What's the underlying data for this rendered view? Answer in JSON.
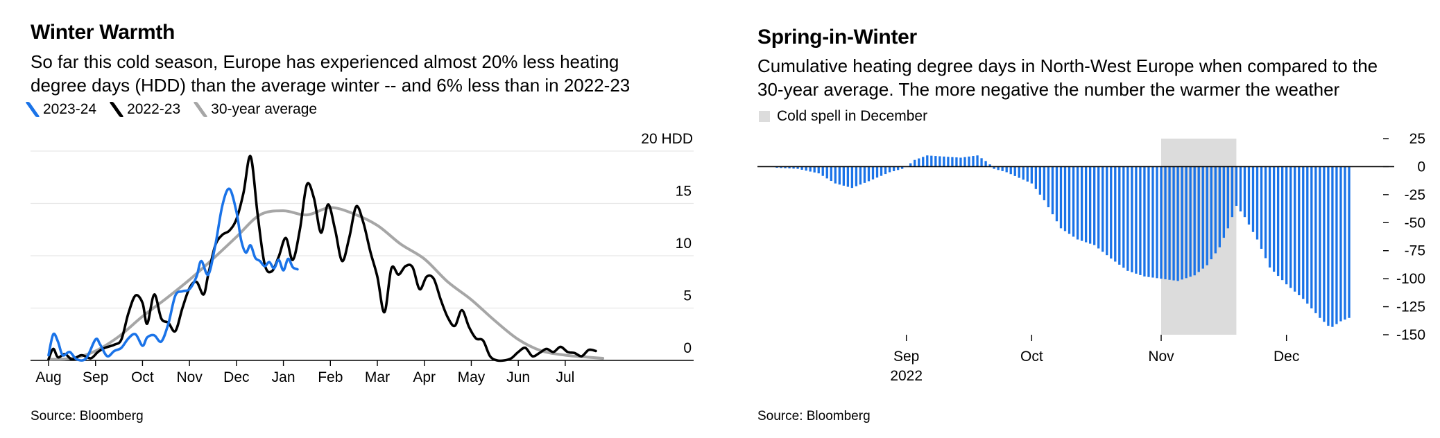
{
  "left": {
    "title": "Winter Warmth",
    "subtitle_1": "So far this cold season, Europe has experienced almost 20% less heating",
    "subtitle_2": "degree days (HDD) than the average winter -- and 6% less than in 2022-23",
    "source": "Source: Bloomberg",
    "colors": {
      "s2324": "#1a73e8",
      "s2223": "#000000",
      "avg": "#a6a6a6"
    },
    "chart_data": {
      "type": "line",
      "x_ticks": [
        "Aug",
        "Sep",
        "Oct",
        "Nov",
        "Dec",
        "Jan",
        "Feb",
        "Mar",
        "Apr",
        "May",
        "Jun",
        "Jul"
      ],
      "y_ticks": [
        {
          "value": 0,
          "label": "0"
        },
        {
          "value": 5,
          "label": "5"
        },
        {
          "value": 10,
          "label": "10"
        },
        {
          "value": 15,
          "label": "15"
        },
        {
          "value": 20,
          "label": "20 HDD"
        }
      ],
      "ylim": [
        0,
        20
      ],
      "xlim": [
        0,
        12.7
      ],
      "grid": true,
      "legend_position": "top-left",
      "series": [
        {
          "name": "2023-24",
          "key": "s2324",
          "x": [
            0.0,
            0.1,
            0.2,
            0.3,
            0.45,
            0.6,
            0.8,
            1.0,
            1.1,
            1.25,
            1.4,
            1.55,
            1.7,
            1.85,
            2.0,
            2.1,
            2.25,
            2.4,
            2.55,
            2.7,
            2.85,
            3.0,
            3.15,
            3.25,
            3.4,
            3.55,
            3.7,
            3.85,
            4.0,
            4.1,
            4.2,
            4.3,
            4.4,
            4.5,
            4.6,
            4.7,
            4.8,
            4.9,
            5.0,
            5.1,
            5.2,
            5.3
          ],
          "y": [
            0.5,
            2.5,
            1.8,
            0.5,
            0.8,
            0.1,
            0.2,
            2.0,
            1.5,
            0.4,
            0.9,
            1.2,
            2.1,
            2.5,
            1.4,
            2.2,
            2.4,
            1.8,
            3.5,
            6.2,
            6.6,
            6.8,
            8.0,
            9.5,
            8.2,
            11.0,
            14.8,
            16.4,
            14.2,
            11.5,
            10.3,
            11.0,
            9.8,
            9.5,
            9.0,
            9.4,
            8.8,
            9.6,
            8.6,
            9.7,
            8.9,
            8.7
          ]
        },
        {
          "name": "2022-23",
          "key": "s2223",
          "x": [
            0.0,
            0.1,
            0.2,
            0.35,
            0.5,
            0.7,
            0.9,
            1.05,
            1.2,
            1.4,
            1.55,
            1.7,
            1.85,
            2.0,
            2.1,
            2.25,
            2.4,
            2.55,
            2.7,
            2.85,
            3.0,
            3.15,
            3.3,
            3.4,
            3.55,
            3.7,
            3.85,
            4.0,
            4.15,
            4.3,
            4.45,
            4.6,
            4.75,
            4.9,
            5.05,
            5.2,
            5.35,
            5.5,
            5.65,
            5.8,
            5.95,
            6.1,
            6.25,
            6.4,
            6.55,
            6.7,
            6.85,
            7.0,
            7.15,
            7.3,
            7.45,
            7.6,
            7.75,
            7.9,
            8.05,
            8.2,
            8.35,
            8.5,
            8.65,
            8.8,
            8.95,
            9.1,
            9.25,
            9.4,
            9.55,
            9.7,
            9.85,
            10.0,
            10.15,
            10.3,
            10.45,
            10.6,
            10.75,
            10.9,
            11.05,
            11.2,
            11.35,
            11.5,
            11.65
          ],
          "y": [
            0.1,
            1.1,
            0.3,
            0.6,
            0.1,
            0.5,
            0.2,
            0.8,
            1.2,
            1.5,
            2.0,
            4.5,
            6.2,
            5.5,
            3.5,
            6.3,
            4.0,
            3.6,
            2.8,
            5.0,
            6.9,
            7.5,
            6.3,
            8.2,
            11.0,
            12.0,
            12.4,
            13.5,
            16.0,
            19.5,
            14.0,
            9.2,
            8.5,
            9.9,
            11.7,
            9.6,
            12.5,
            16.8,
            15.5,
            12.2,
            14.9,
            12.5,
            9.5,
            11.7,
            14.7,
            13.2,
            10.4,
            8.0,
            4.6,
            8.8,
            8.2,
            9.0,
            8.9,
            6.8,
            8.0,
            7.8,
            5.8,
            4.1,
            3.3,
            4.8,
            3.2,
            2.1,
            1.9,
            0.4,
            0.0,
            0.0,
            0.2,
            0.8,
            1.2,
            0.4,
            0.7,
            1.1,
            0.8,
            1.3,
            0.8,
            0.7,
            0.4,
            1.0,
            0.9
          ]
        },
        {
          "name": "30-year average",
          "key": "avg",
          "x": [
            0.0,
            0.5,
            1.0,
            1.5,
            2.0,
            2.5,
            3.0,
            3.5,
            4.0,
            4.5,
            5.0,
            5.5,
            6.0,
            6.5,
            7.0,
            7.5,
            8.0,
            8.5,
            9.0,
            9.5,
            10.0,
            10.5,
            11.0,
            11.5,
            11.8
          ],
          "y": [
            0.1,
            0.2,
            0.9,
            2.3,
            4.2,
            5.9,
            7.7,
            9.7,
            11.8,
            13.9,
            14.3,
            13.9,
            14.6,
            14.0,
            12.9,
            11.1,
            9.7,
            7.5,
            5.8,
            3.8,
            2.0,
            0.9,
            0.5,
            0.3,
            0.2
          ]
        }
      ]
    }
  },
  "right": {
    "title": "Spring-in-Winter",
    "subtitle_1": "Cumulative heating degree days in North-West Europe when compared to the",
    "subtitle_2": "30-year average. The more negative the number the warmer the weather",
    "legend_label": "Cold spell in December",
    "source": "Source: Bloomberg",
    "colors": {
      "bars": "#1a73e8",
      "shade": "#dcdcdc"
    },
    "chart_data": {
      "type": "bar",
      "x_ticks": [
        {
          "label": "Sep",
          "sublabel": "2022",
          "day": 31
        },
        {
          "label": "Oct",
          "day": 61
        },
        {
          "label": "Nov",
          "day": 92
        },
        {
          "label": "Dec",
          "day": 122
        }
      ],
      "y_ticks": [
        {
          "value": 25,
          "label": "25"
        },
        {
          "value": 0,
          "label": "0"
        },
        {
          "value": -25,
          "label": "-25"
        },
        {
          "value": -50,
          "label": "-50"
        },
        {
          "value": -75,
          "label": "-75"
        },
        {
          "value": -100,
          "label": "-100"
        },
        {
          "value": -125,
          "label": "-125"
        },
        {
          "value": -150,
          "label": "-150"
        }
      ],
      "ylim": [
        -150,
        25
      ],
      "x_start_day": 0,
      "x_end_day": 137,
      "shaded_range_days": [
        92,
        110
      ],
      "grid": false,
      "legend_position": "top-left",
      "knots": [
        [
          0,
          -1
        ],
        [
          5,
          -2
        ],
        [
          10,
          -6
        ],
        [
          14,
          -15
        ],
        [
          18,
          -19
        ],
        [
          22,
          -13
        ],
        [
          27,
          -5
        ],
        [
          30,
          -2
        ],
        [
          31,
          0
        ],
        [
          33,
          6
        ],
        [
          36,
          10
        ],
        [
          40,
          9
        ],
        [
          44,
          8
        ],
        [
          48,
          10
        ],
        [
          50,
          5
        ],
        [
          51,
          2
        ],
        [
          52,
          -2
        ],
        [
          55,
          -5
        ],
        [
          58,
          -10
        ],
        [
          61,
          -15
        ],
        [
          64,
          -30
        ],
        [
          68,
          -55
        ],
        [
          72,
          -65
        ],
        [
          76,
          -70
        ],
        [
          80,
          -82
        ],
        [
          84,
          -93
        ],
        [
          88,
          -98
        ],
        [
          92,
          -100
        ],
        [
          96,
          -102
        ],
        [
          100,
          -97
        ],
        [
          103,
          -88
        ],
        [
          106,
          -72
        ],
        [
          108,
          -55
        ],
        [
          110,
          -35
        ],
        [
          112,
          -45
        ],
        [
          115,
          -65
        ],
        [
          118,
          -90
        ],
        [
          122,
          -105
        ],
        [
          126,
          -118
        ],
        [
          130,
          -135
        ],
        [
          132,
          -142
        ],
        [
          133,
          -143
        ],
        [
          135,
          -138
        ],
        [
          137,
          -135
        ]
      ]
    }
  }
}
